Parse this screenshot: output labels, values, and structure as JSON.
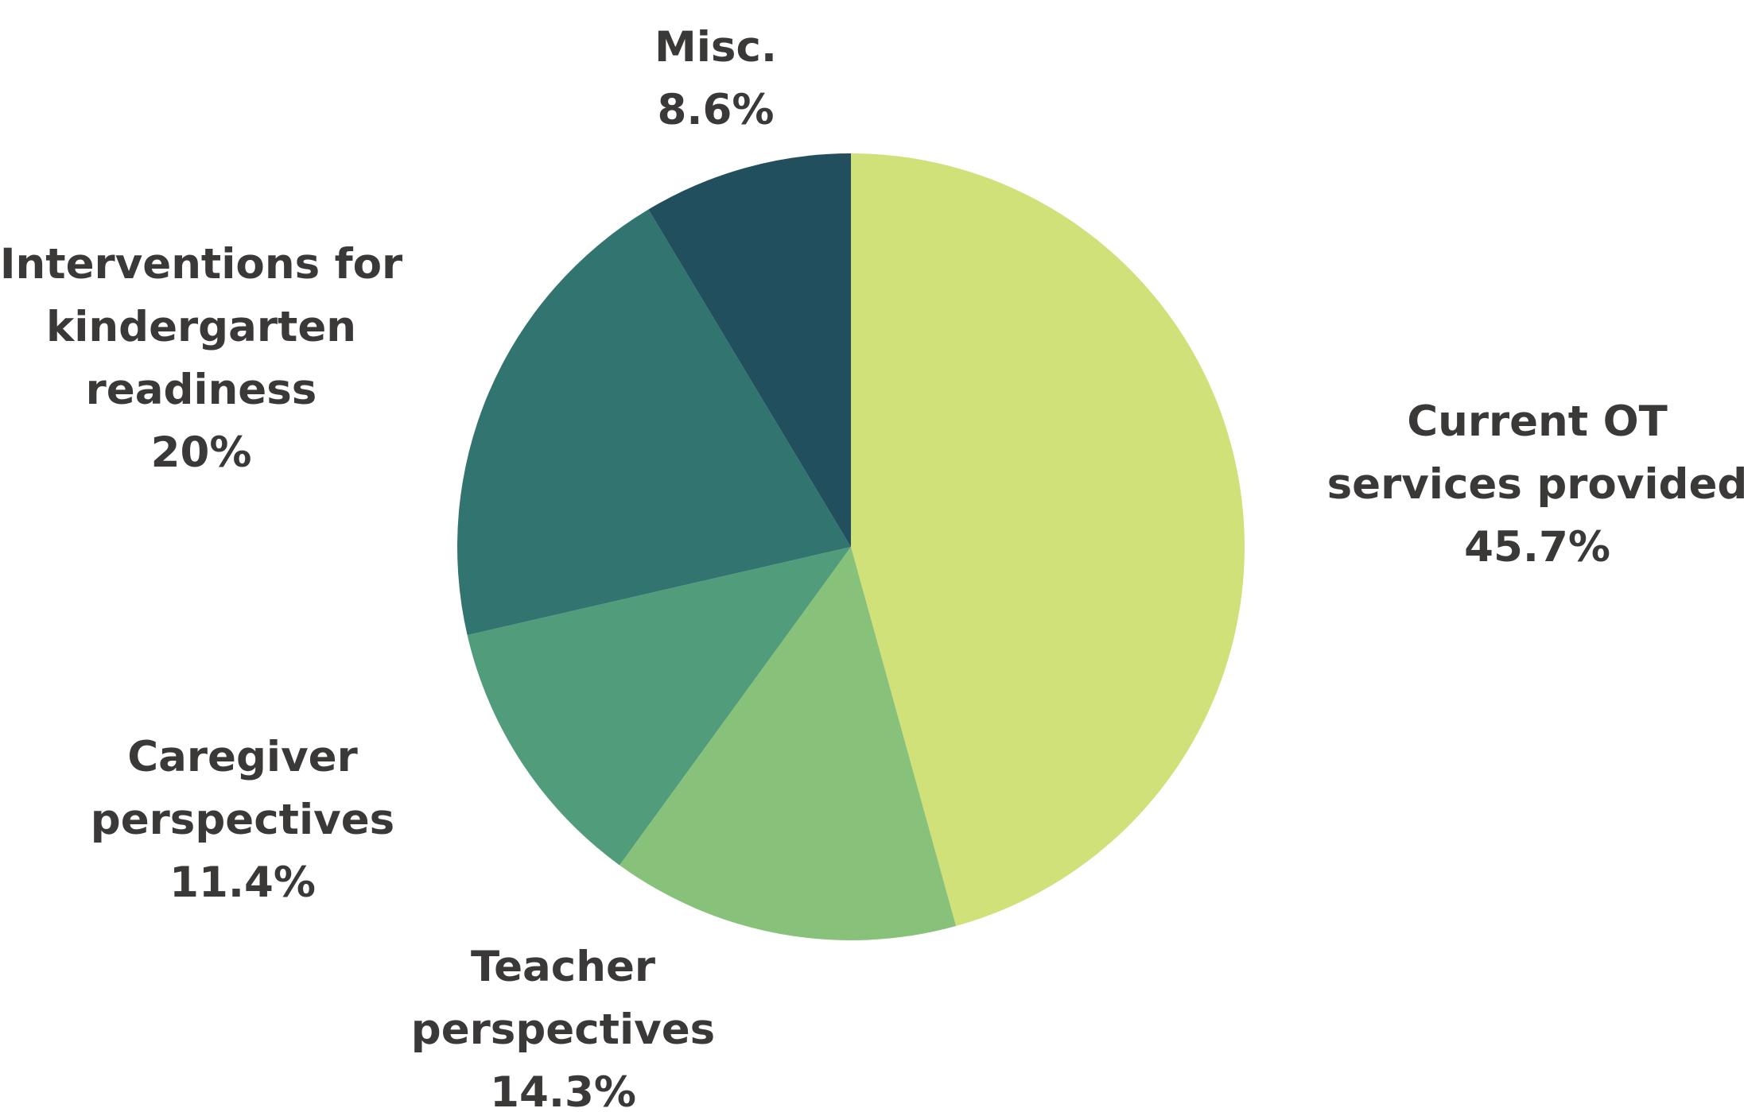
{
  "chart_data": {
    "type": "pie",
    "start_angle": "12 o'clock",
    "direction": "clockwise",
    "legend": "none",
    "slices": [
      {
        "label_lines": [
          "Current OT",
          "services provided"
        ],
        "percent_label": "45.7%",
        "value": 45.7,
        "color": "#d0e17a"
      },
      {
        "label_lines": [
          "Teacher",
          "perspectives"
        ],
        "percent_label": "14.3%",
        "value": 14.3,
        "color": "#88c17a"
      },
      {
        "label_lines": [
          "Caregiver",
          "perspectives"
        ],
        "percent_label": "11.4%",
        "value": 11.4,
        "color": "#509c7b"
      },
      {
        "label_lines": [
          "Interventions for",
          "kindergarten",
          "readiness"
        ],
        "percent_label": "20%",
        "value": 20,
        "color": "#32746f"
      },
      {
        "label_lines": [
          "Misc."
        ],
        "percent_label": "8.6%",
        "value": 8.6,
        "color": "#214f5e"
      }
    ]
  }
}
